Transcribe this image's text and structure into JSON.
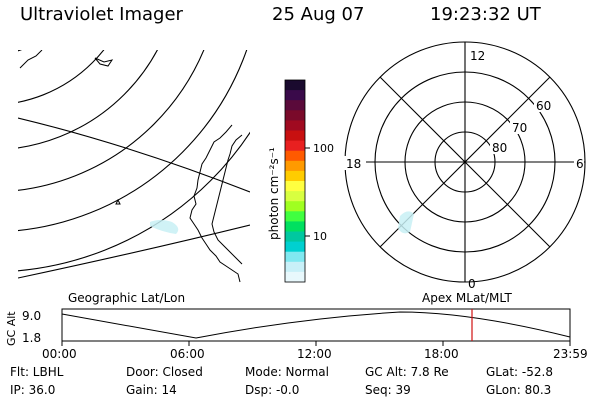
{
  "header": {
    "title": "Ultraviolet Imager",
    "date": "25 Aug 07",
    "time": "19:23:32 UT"
  },
  "colorbar": {
    "unit_label": "photon cm⁻²s⁻¹",
    "tick_labels": [
      "100",
      "10"
    ],
    "colors": [
      "#1a0a2e",
      "#3a0a4a",
      "#5a0a3a",
      "#7a0a2a",
      "#a00a20",
      "#c81010",
      "#e82020",
      "#ff5a00",
      "#ff9a00",
      "#ffcc00",
      "#ffff40",
      "#d8ff40",
      "#a0ff20",
      "#40ff40",
      "#00e060",
      "#00c8a0",
      "#00d0d0",
      "#80e8f0",
      "#c8f0f8",
      "#e8f8fc"
    ]
  },
  "polar": {
    "clock_labels": [
      "12",
      "18",
      "6",
      "0"
    ],
    "lat_labels": [
      "60",
      "70",
      "80"
    ]
  },
  "map_labels": {
    "left": "Geographic Lat/Lon",
    "right": "Apex MLat/MLT"
  },
  "timeline": {
    "ylabel": "GC Alt",
    "ytick_labels": [
      "9.0",
      "1.8"
    ],
    "xtick_labels": [
      "00:00",
      "06:00",
      "12:00",
      "18:00",
      "23:59"
    ],
    "marker_color": "#d01010"
  },
  "info": {
    "filter": "Flt: LBHL",
    "door": "Door: Closed",
    "mode": "Mode: Normal",
    "gc_alt": "GC Alt: 7.8 Re",
    "glat": "GLat: -52.8",
    "ip": "IP: 36.0",
    "gain": "Gain: 14",
    "dsp": "Dsp:   -0.0",
    "seq": "Seq: 39",
    "glon": "GLon:  80.3"
  }
}
